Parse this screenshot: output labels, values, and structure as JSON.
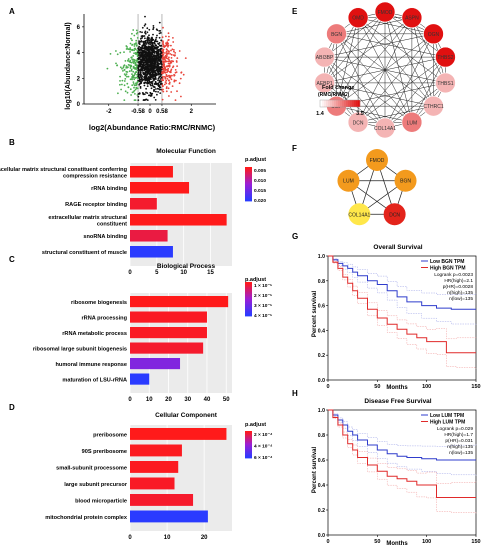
{
  "panel_labels": [
    "A",
    "B",
    "C",
    "D",
    "E",
    "F",
    "G",
    "H"
  ],
  "colors": {
    "up": "#e8443a",
    "down": "#4caf50",
    "none": "#111111",
    "bar_high": "#ff1a1a",
    "bar_mid": "#9b1fd6",
    "bar_low": "#2a3bff",
    "node_dark": "#e01010",
    "node_light": "#f4b4b4",
    "hub_red": "#e3241b",
    "hub_orange": "#f39a1d",
    "hub_yellow": "#ffe74a",
    "km_low": "#2f3ccc",
    "km_high": "#e02a2a"
  },
  "panelA": {
    "xlabel": "log2(Abundance Ratio:RMC/RNMC)",
    "ylabel": "log10(Abundance:Normal)",
    "x_ticks": [
      "-2",
      "-0.58",
      "0",
      "0.58",
      "2"
    ],
    "x_tick_values": [
      -2,
      -0.58,
      0,
      0.58,
      2
    ],
    "y_ticks": [
      "0",
      "2",
      "4",
      "6"
    ],
    "y_tick_values": [
      0,
      2,
      4,
      6
    ],
    "xlim": [
      -3.2,
      3.2
    ],
    "ylim": [
      0,
      7
    ],
    "thresholds": [
      -0.58,
      0.58
    ]
  },
  "panelB": {
    "title": "Molecular Function",
    "legend_title": "p.adjust",
    "legend_ticks": [
      "0.005",
      "0.010",
      "0.015",
      "0.020"
    ],
    "x_ticks": [
      "0",
      "5",
      "10",
      "15"
    ],
    "x_tick_values": [
      0,
      5,
      10,
      15
    ],
    "xlim": [
      0,
      19
    ]
  },
  "panelC": {
    "title": "Biological Process",
    "legend_title": "p.adjust",
    "legend_ticks": [
      "1 × 10⁻⁵",
      "2 × 10⁻⁵",
      "3 × 10⁻⁵",
      "4 × 10⁻⁵"
    ],
    "x_ticks": [
      "0",
      "10",
      "20",
      "30",
      "40",
      "50"
    ],
    "x_tick_values": [
      0,
      10,
      20,
      30,
      40,
      50
    ],
    "xlim": [
      0,
      53
    ]
  },
  "panelD": {
    "title": "Cellular Component",
    "legend_title": "p.adjust",
    "legend_ticks": [
      "2 × 10⁻⁴",
      "4 × 10⁻⁴",
      "6 × 10⁻⁴"
    ],
    "x_ticks": [
      "0",
      "10",
      "20"
    ],
    "x_tick_values": [
      0,
      10,
      20
    ],
    "xlim": [
      0,
      27.5
    ]
  },
  "panelE": {
    "nodes": [
      "FMOD",
      "ASPN",
      "OGN",
      "THBS2",
      "THBS1",
      "CTHRC1",
      "LUM",
      "COL14A1",
      "DCN",
      "CILP",
      "AEBP1",
      "ABI3BP",
      "BGN",
      "OMD"
    ],
    "legend_title": "Fold change",
    "legend_subtitle": "(RMC/RNMC)",
    "legend_ticks": [
      "1.4",
      "3.5"
    ]
  },
  "panelF": {
    "nodes": [
      "FMOD",
      "BGN",
      "DCN",
      "COL14A1",
      "LUM"
    ]
  },
  "panelG": {
    "title": "Overall Survival",
    "ylabel": "Percent survival",
    "xlabel": "Months",
    "legend": [
      "Low BGN TPM",
      "High BGN TPM"
    ],
    "stats": [
      "Logrank p=0.0023",
      "HR(high)=2.1",
      "p(HR)=0.0028",
      "n(high)=135",
      "n(low)=135"
    ],
    "x_ticks": [
      "0",
      "50",
      "100",
      "150"
    ],
    "x_tick_values": [
      0,
      50,
      100,
      150
    ],
    "y_ticks": [
      "0.0",
      "0.2",
      "0.4",
      "0.6",
      "0.8",
      "1.0"
    ],
    "y_tick_values": [
      0,
      0.2,
      0.4,
      0.6,
      0.8,
      1.0
    ]
  },
  "panelH": {
    "title": "Disease Free Survival",
    "ylabel": "Percent survival",
    "xlabel": "Months",
    "legend": [
      "Low LUM TPM",
      "High LUM TPM"
    ],
    "stats": [
      "Logrank p=0.029",
      "HR(high)=1.7",
      "p(HR)=0.031",
      "n(high)=135",
      "n(low)=135"
    ],
    "x_ticks": [
      "0",
      "50",
      "100",
      "150"
    ],
    "x_tick_values": [
      0,
      50,
      100,
      150
    ],
    "y_ticks": [
      "0.0",
      "0.2",
      "0.4",
      "0.6",
      "0.8",
      "1.0"
    ],
    "y_tick_values": [
      0,
      0.2,
      0.4,
      0.6,
      0.8,
      1.0
    ]
  },
  "chart_data": [
    {
      "type": "scatter",
      "panel": "A",
      "xlabel": "log2(Abundance Ratio:RMC/RNMC)",
      "ylabel": "log10(Abundance:Normal)",
      "xlim": [
        -3.2,
        3.2
      ],
      "ylim": [
        0,
        7
      ],
      "thresholds": [
        -0.58,
        0.58
      ],
      "groups": [
        "down-regulated (green)",
        "unchanged (black)",
        "up-regulated (red)"
      ]
    },
    {
      "type": "bar",
      "panel": "B",
      "title": "Molecular Function",
      "categories": [
        "extracellular matrix structural constituent conferring compression resistance",
        "rRNA binding",
        "RAGE receptor binding",
        "extracellular matrix structural constituent",
        "snoRNA binding",
        "structural constituent of muscle"
      ],
      "values": [
        8,
        11,
        5,
        18,
        7,
        8
      ],
      "p_adjust": [
        0.002,
        0.002,
        0.003,
        0.002,
        0.004,
        0.021
      ],
      "xlim": [
        0,
        19
      ]
    },
    {
      "type": "bar",
      "panel": "C",
      "title": "Biological Process",
      "categories": [
        "ribosome biogenesis",
        "rRNA processing",
        "rRNA metabolic process",
        "ribosomal large subunit biogenesis",
        "humoral immune response",
        "maturation of LSU-rRNA"
      ],
      "values": [
        51,
        40,
        40,
        38,
        26,
        10
      ],
      "p_adjust": [
        1e-06,
        2e-06,
        2e-06,
        3e-06,
        2.5e-05,
        4e-05
      ],
      "xlim": [
        0,
        53
      ]
    },
    {
      "type": "bar",
      "panel": "D",
      "title": "Cellular Component",
      "categories": [
        "preribosome",
        "90S preribosome",
        "small-subunit processome",
        "large subunit precursor",
        "blood microparticle",
        "mitochondrial protein complex"
      ],
      "values": [
        26,
        14,
        13,
        12,
        17,
        21
      ],
      "p_adjust": [
        1e-05,
        2e-05,
        2e-05,
        3e-05,
        4e-05,
        0.00065
      ],
      "xlim": [
        0,
        27.5
      ]
    },
    {
      "type": "line",
      "panel": "G",
      "title": "Overall Survival",
      "xlabel": "Months",
      "ylabel": "Percent survival",
      "xlim": [
        0,
        150
      ],
      "ylim": [
        0,
        1
      ],
      "series": [
        {
          "name": "Low BGN TPM",
          "x": [
            0,
            5,
            10,
            15,
            20,
            25,
            30,
            40,
            50,
            60,
            70,
            80,
            95,
            110,
            125,
            150
          ],
          "y": [
            1.0,
            0.97,
            0.94,
            0.92,
            0.9,
            0.87,
            0.84,
            0.8,
            0.77,
            0.72,
            0.67,
            0.63,
            0.6,
            0.58,
            0.57,
            0.57
          ]
        },
        {
          "name": "High BGN TPM",
          "x": [
            0,
            5,
            10,
            15,
            20,
            25,
            30,
            40,
            50,
            60,
            70,
            80,
            90,
            100,
            110,
            120,
            130,
            150
          ],
          "y": [
            1.0,
            0.95,
            0.9,
            0.83,
            0.78,
            0.72,
            0.66,
            0.57,
            0.5,
            0.45,
            0.41,
            0.37,
            0.34,
            0.31,
            0.31,
            0.22,
            0.22,
            0.22
          ]
        }
      ]
    },
    {
      "type": "line",
      "panel": "H",
      "title": "Disease Free Survival",
      "xlabel": "Months",
      "ylabel": "Percent survival",
      "xlim": [
        0,
        150
      ],
      "ylim": [
        0,
        1
      ],
      "series": [
        {
          "name": "Low LUM TPM",
          "x": [
            0,
            5,
            10,
            15,
            20,
            25,
            30,
            40,
            50,
            60,
            70,
            80,
            95,
            110,
            125,
            150
          ],
          "y": [
            1.0,
            0.96,
            0.92,
            0.88,
            0.83,
            0.8,
            0.76,
            0.72,
            0.68,
            0.65,
            0.63,
            0.62,
            0.61,
            0.6,
            0.6,
            0.6
          ]
        },
        {
          "name": "High LUM TPM",
          "x": [
            0,
            5,
            10,
            15,
            20,
            25,
            30,
            40,
            50,
            60,
            70,
            80,
            90,
            100,
            110,
            125,
            150
          ],
          "y": [
            1.0,
            0.94,
            0.88,
            0.8,
            0.73,
            0.68,
            0.62,
            0.56,
            0.51,
            0.47,
            0.45,
            0.43,
            0.4,
            0.4,
            0.3,
            0.3,
            0.3
          ]
        }
      ]
    }
  ]
}
